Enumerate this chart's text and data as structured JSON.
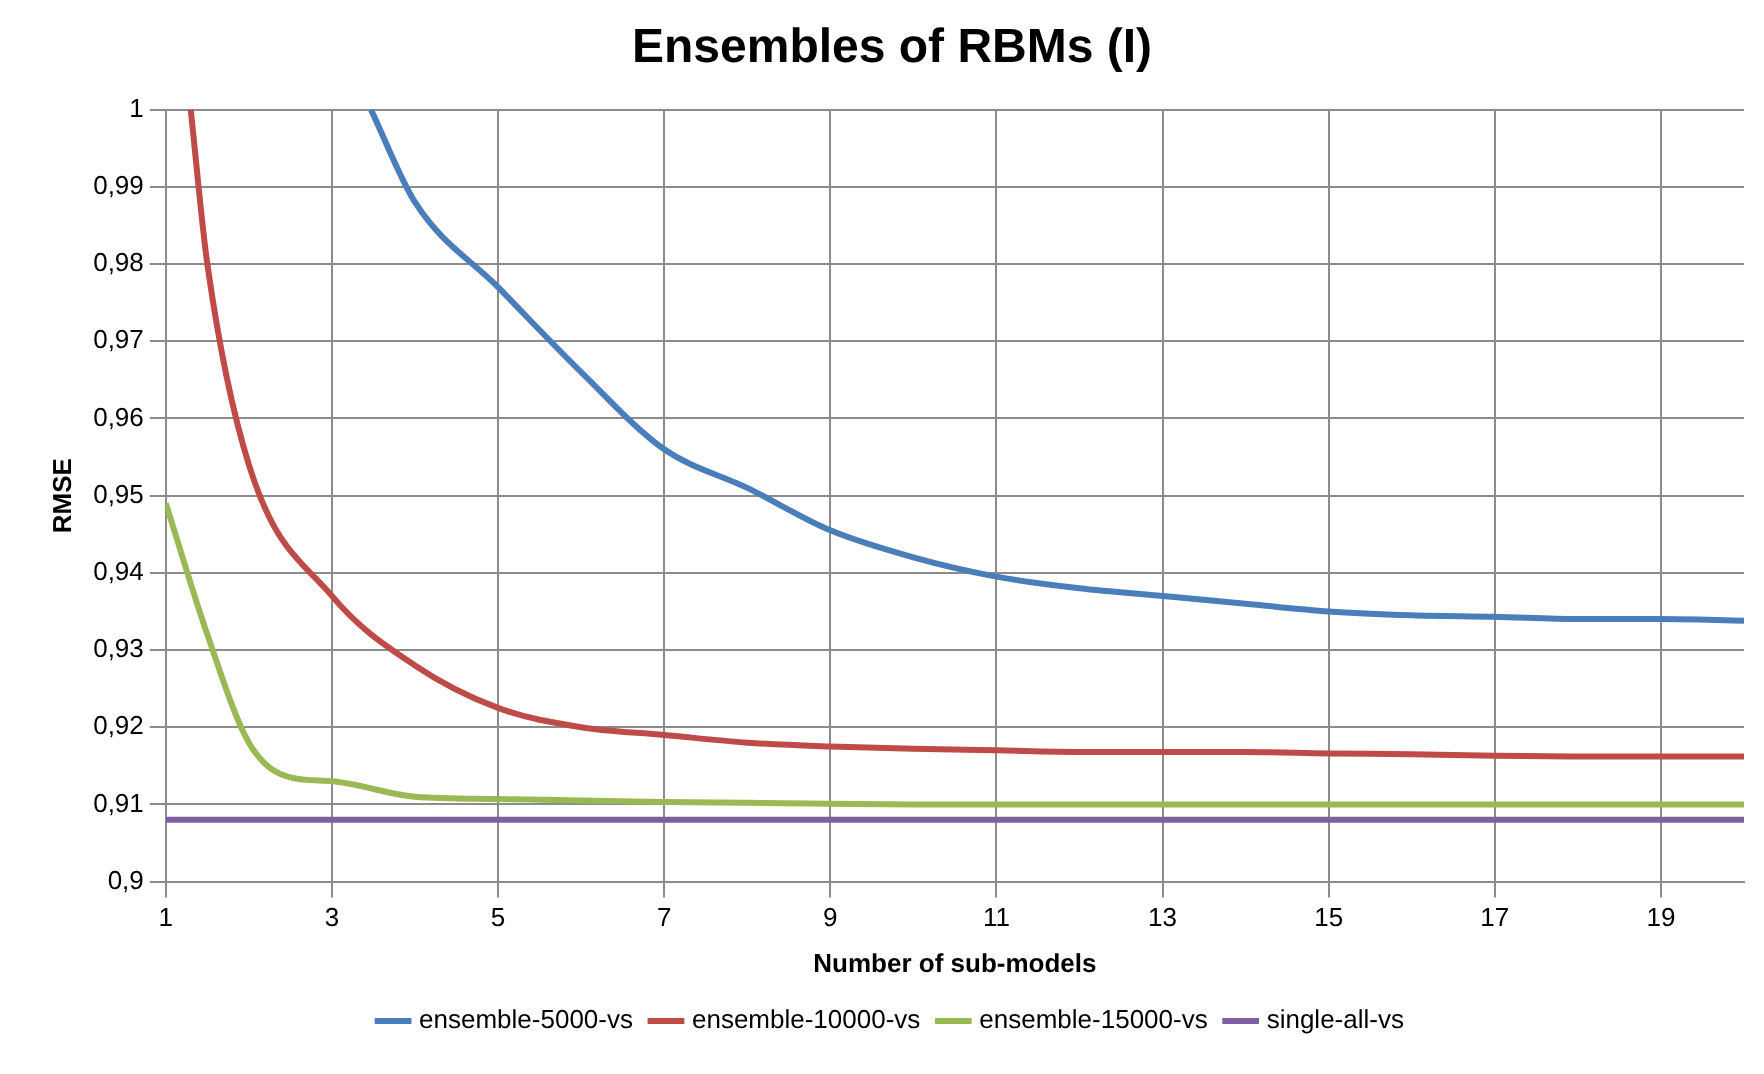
{
  "chart_data": {
    "type": "line",
    "title": "Ensembles of RBMs (I)",
    "xlabel": "Number of sub-models",
    "ylabel": "RMSE",
    "xlim": [
      1,
      20
    ],
    "xticks": [
      1,
      3,
      5,
      7,
      9,
      11,
      13,
      15,
      17,
      19
    ],
    "ylim": [
      0.9,
      1
    ],
    "yticks": [
      {
        "value": 0.9,
        "label": "0,9"
      },
      {
        "value": 0.91,
        "label": "0,91"
      },
      {
        "value": 0.92,
        "label": "0,92"
      },
      {
        "value": 0.93,
        "label": "0,93"
      },
      {
        "value": 0.94,
        "label": "0,94"
      },
      {
        "value": 0.95,
        "label": "0,95"
      },
      {
        "value": 0.96,
        "label": "0,96"
      },
      {
        "value": 0.97,
        "label": "0,97"
      },
      {
        "value": 0.98,
        "label": "0,98"
      },
      {
        "value": 0.99,
        "label": "0,99"
      },
      {
        "value": 1,
        "label": "1"
      }
    ],
    "grid": true,
    "legend": "bottom",
    "marker": "none",
    "line_style": "solid",
    "series": [
      {
        "name": "ensemble-5000-vs",
        "color": "#4a7ebb",
        "x": [
          3.47,
          4,
          5,
          6,
          7,
          8,
          9,
          10,
          11,
          12,
          13,
          14,
          15,
          16,
          17,
          18,
          19,
          20
        ],
        "values": [
          1,
          0.988,
          0.977,
          0.966,
          0.956,
          0.951,
          0.9455,
          0.942,
          0.9395,
          0.938,
          0.937,
          0.936,
          0.935,
          0.9345,
          0.9343,
          0.934,
          0.934,
          0.9338
        ]
      },
      {
        "name": "ensemble-10000-vs",
        "color": "#be4b48",
        "x": [
          1.3,
          1.5,
          2,
          3,
          4,
          5,
          6,
          7,
          8,
          9,
          10,
          11,
          12,
          13,
          14,
          15,
          16,
          17,
          18,
          19,
          20
        ],
        "values": [
          1,
          0.98,
          0.954,
          0.937,
          0.928,
          0.9225,
          0.92,
          0.919,
          0.918,
          0.9175,
          0.9172,
          0.917,
          0.9168,
          0.9168,
          0.9168,
          0.9166,
          0.9165,
          0.9163,
          0.9162,
          0.9162,
          0.9162
        ]
      },
      {
        "name": "ensemble-15000-vs",
        "color": "#98b954",
        "x": [
          1,
          1.5,
          2,
          2.5,
          3,
          4,
          5,
          6,
          7,
          8,
          9,
          10,
          11,
          12,
          13,
          14,
          15,
          16,
          17,
          18,
          19,
          20
        ],
        "values": [
          0.949,
          0.932,
          0.918,
          0.9135,
          0.913,
          0.911,
          0.9107,
          0.9105,
          0.9103,
          0.9102,
          0.9101,
          0.91,
          0.91,
          0.91,
          0.91,
          0.91,
          0.91,
          0.91,
          0.91,
          0.91,
          0.91,
          0.91
        ]
      },
      {
        "name": "single-all-vs",
        "color": "#7d60a0",
        "x": [
          1,
          20
        ],
        "values": [
          0.908,
          0.908
        ]
      }
    ]
  }
}
